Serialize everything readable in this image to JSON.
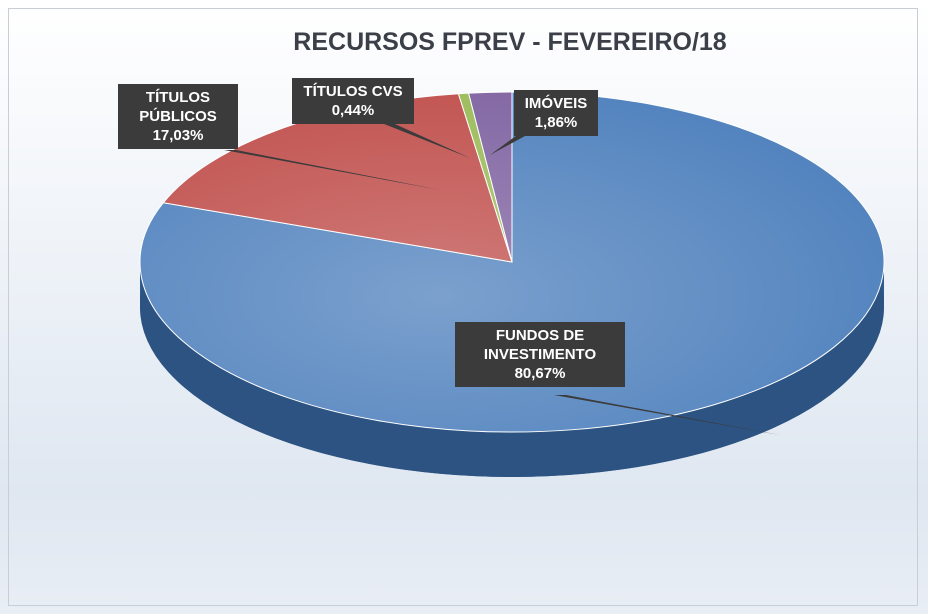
{
  "chart_data": {
    "type": "pie",
    "title": "RECURSOS FPREV - FEVEREIRO/18",
    "categories": [
      "FUNDOS DE INVESTIMENTO",
      "TÍTULOS PÚBLICOS",
      "TÍTULOS CVS",
      "IMÓVEIS"
    ],
    "values": [
      80.67,
      17.03,
      0.44,
      1.86
    ],
    "value_labels": [
      "80,67%",
      "17,03%",
      "0,44%",
      "1,86%"
    ],
    "colors": [
      "#4f81bd",
      "#c0504d",
      "#9bbb59",
      "#8064a2"
    ]
  }
}
